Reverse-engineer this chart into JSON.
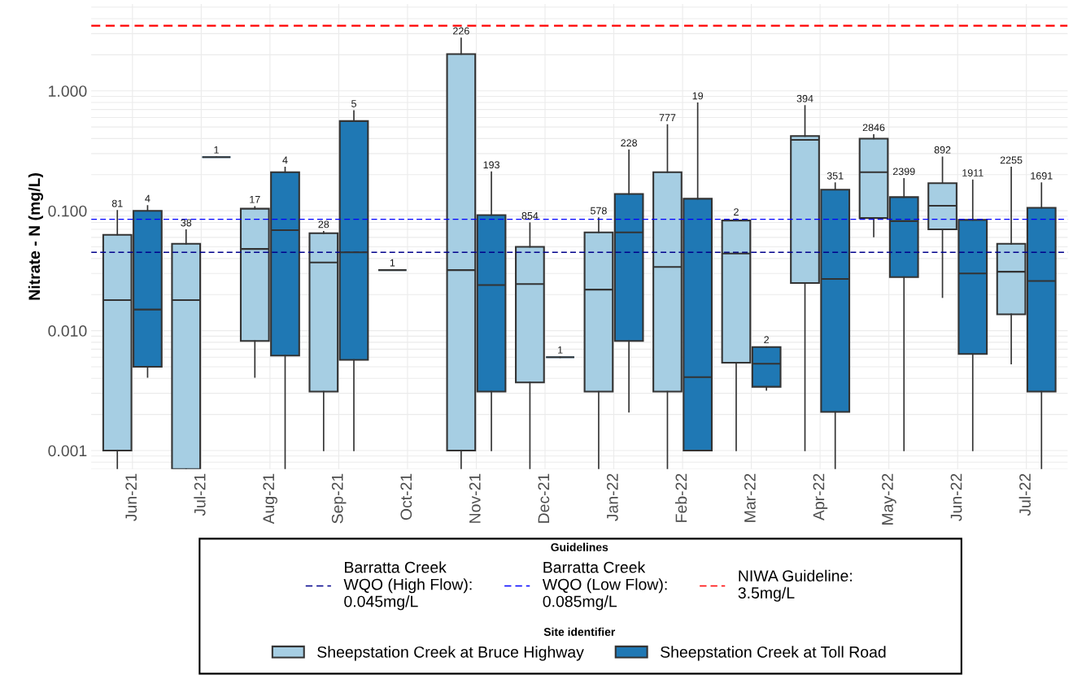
{
  "chart_data": {
    "type": "box",
    "ylabel": "Nitrate - N (mg/L)",
    "log": "y",
    "grid": true,
    "legend": "bottom",
    "legend_title": "Site identifier",
    "annotations": [
      "Guidelines"
    ],
    "categories": [
      "Jun-21",
      "Jul-21",
      "Aug-21",
      "Sep-21",
      "Oct-21",
      "Nov-21",
      "Dec-21",
      "Jan-22",
      "Feb-22",
      "Mar-22",
      "Apr-22",
      "May-22",
      "Jun-22",
      "Jul-22"
    ],
    "ylim": [
      0.0007,
      5.3
    ],
    "yticks": [
      {
        "value": 0.001,
        "label": "0.001"
      },
      {
        "value": 0.01,
        "label": "0.010"
      },
      {
        "value": 0.1,
        "label": "0.100"
      },
      {
        "value": 1,
        "label": "1.000"
      }
    ],
    "ref_lines": [
      {
        "axis": "y",
        "value": 0.045,
        "label": "Barratta Creek WQO (High Flow): 0.045mg/L",
        "color": "#00008b",
        "line_style": "dashed"
      },
      {
        "axis": "y",
        "value": 0.085,
        "label": "Barratta Creek WQO (Low Flow): 0.085mg/L",
        "color": "#0000ff",
        "line_style": "dashed"
      },
      {
        "axis": "y",
        "value": 3.5,
        "label": "NIWA Guideline: 3.5mg/L",
        "color": "#ff0000",
        "line_style": "dashed"
      }
    ],
    "series": [
      {
        "name": "Sheepstation Creek at Bruce Highway",
        "color": "#a6cee3",
        "boxes": [
          {
            "low": 0.0007,
            "q1": 0.001,
            "median": 0.018,
            "q3": 0.063,
            "high": 0.1
          },
          {
            "low": 0.0007,
            "q1": 0.0007,
            "median": 0.018,
            "q3": 0.053,
            "high": 0.069
          },
          {
            "low": 0.0041,
            "q1": 0.0082,
            "median": 0.048,
            "q3": 0.104,
            "high": 0.108
          },
          {
            "low": 0.001,
            "q1": 0.0031,
            "median": 0.037,
            "q3": 0.065,
            "high": 0.067
          },
          {
            "low": 0.032,
            "q1": 0.032,
            "median": 0.032,
            "q3": 0.032,
            "high": 0.032
          },
          {
            "low": 0.0007,
            "q1": 0.001,
            "median": 0.032,
            "q3": 2.03,
            "high": 2.75
          },
          {
            "low": 0.0007,
            "q1": 0.0037,
            "median": 0.0245,
            "q3": 0.05,
            "high": 0.079
          },
          {
            "low": 0.0007,
            "q1": 0.0031,
            "median": 0.022,
            "q3": 0.066,
            "high": 0.087
          },
          {
            "low": 0.0007,
            "q1": 0.0031,
            "median": 0.034,
            "q3": 0.21,
            "high": 0.52
          },
          {
            "low": 0.001,
            "q1": 0.0054,
            "median": 0.044,
            "q3": 0.083,
            "high": 0.085
          },
          {
            "low": 0.001,
            "q1": 0.025,
            "median": 0.39,
            "q3": 0.42,
            "high": 0.75
          },
          {
            "low": 0.061,
            "q1": 0.087,
            "median": 0.21,
            "q3": 0.4,
            "high": 0.43
          },
          {
            "low": 0.019,
            "q1": 0.07,
            "median": 0.11,
            "q3": 0.17,
            "high": 0.28
          },
          {
            "low": 0.0053,
            "q1": 0.0137,
            "median": 0.031,
            "q3": 0.053,
            "high": 0.23
          }
        ],
        "value_labels": [
          "81",
          "38",
          "17",
          "28",
          "1",
          "226",
          "854",
          "578",
          "777",
          "2",
          "394",
          "2846",
          "892",
          "2255"
        ]
      },
      {
        "name": "Sheepstation Creek at Toll Road",
        "color": "#1f78b4",
        "boxes": [
          {
            "low": 0.0041,
            "q1": 0.005,
            "median": 0.015,
            "q3": 0.1,
            "high": 0.11
          },
          {
            "low": 0.28,
            "q1": 0.28,
            "median": 0.28,
            "q3": 0.28,
            "high": 0.28
          },
          {
            "low": 0.0007,
            "q1": 0.0062,
            "median": 0.069,
            "q3": 0.21,
            "high": 0.23
          },
          {
            "low": 0.001,
            "q1": 0.0057,
            "median": 0.045,
            "q3": 0.56,
            "high": 0.68
          },
          null,
          {
            "low": 0.001,
            "q1": 0.0031,
            "median": 0.024,
            "q3": 0.092,
            "high": 0.21
          },
          {
            "low": 0.006,
            "q1": 0.006,
            "median": 0.006,
            "q3": 0.006,
            "high": 0.006
          },
          {
            "low": 0.0021,
            "q1": 0.0082,
            "median": 0.066,
            "q3": 0.138,
            "high": 0.32
          },
          {
            "low": 0.001,
            "q1": 0.001,
            "median": 0.0041,
            "q3": 0.126,
            "high": 0.79
          },
          {
            "low": 0.0032,
            "q1": 0.0034,
            "median": 0.0053,
            "q3": 0.0073,
            "high": 0.0073
          },
          {
            "low": 0.0007,
            "q1": 0.0021,
            "median": 0.027,
            "q3": 0.15,
            "high": 0.17
          },
          {
            "low": 0.001,
            "q1": 0.028,
            "median": 0.082,
            "q3": 0.13,
            "high": 0.185
          },
          {
            "low": 0.001,
            "q1": 0.0064,
            "median": 0.03,
            "q3": 0.084,
            "high": 0.18
          },
          {
            "low": 0.0007,
            "q1": 0.0031,
            "median": 0.026,
            "q3": 0.106,
            "high": 0.17
          }
        ],
        "value_labels": [
          "4",
          "1",
          "4",
          "5",
          null,
          "193",
          "1",
          "228",
          "19",
          "2",
          "351",
          "2399",
          "1911",
          "1691"
        ]
      }
    ]
  }
}
